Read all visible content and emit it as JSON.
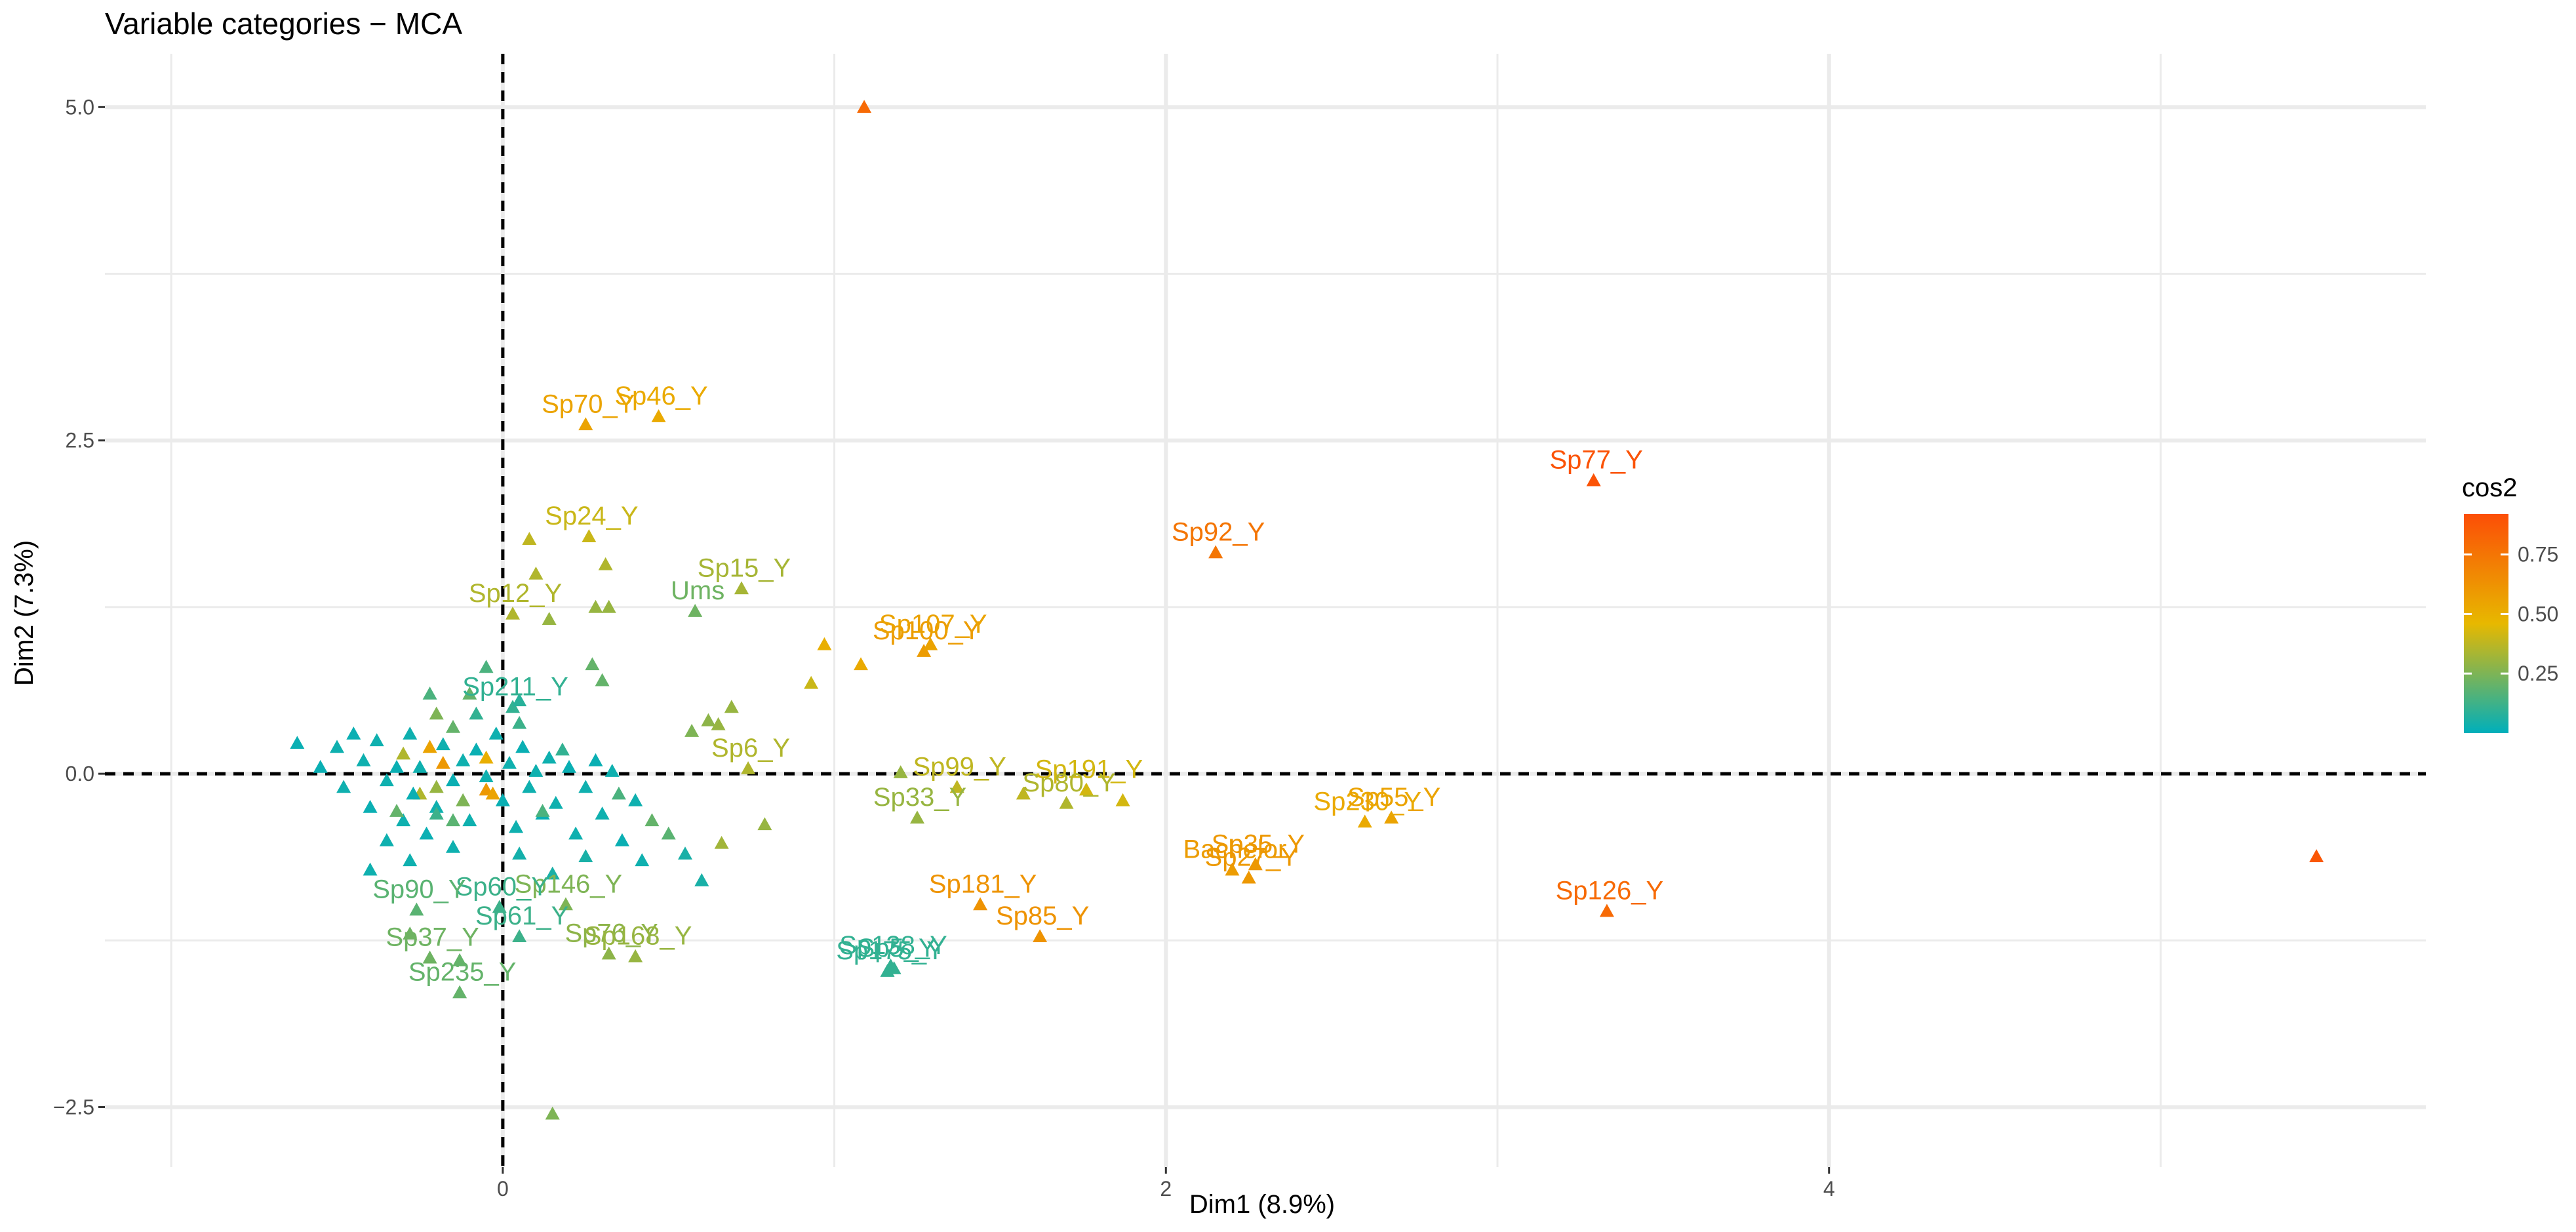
{
  "chart_data": {
    "type": "scatter",
    "title": "Variable categories − MCA",
    "xlabel": "Dim1 (8.9%)",
    "ylabel": "Dim2 (7.3%)",
    "xlim": [
      -1.2,
      5.8
    ],
    "ylim": [
      -2.95,
      5.4
    ],
    "x_ticks": [
      {
        "v": 0,
        "label": "0"
      },
      {
        "v": 2,
        "label": "2"
      },
      {
        "v": 4,
        "label": "4"
      }
    ],
    "y_ticks": [
      {
        "v": -2.5,
        "label": "−2.5"
      },
      {
        "v": 0,
        "label": "0.0"
      },
      {
        "v": 2.5,
        "label": "2.5"
      },
      {
        "v": 5,
        "label": "5.0"
      }
    ],
    "grid": true,
    "reference_lines": {
      "x": 0,
      "y": 0,
      "style": "dashed"
    },
    "marker": "triangle",
    "legend": {
      "title": "cos2",
      "position": "right",
      "range": [
        0,
        0.92
      ],
      "ticks": [
        {
          "v": 0.25,
          "label": "0.25"
        },
        {
          "v": 0.5,
          "label": "0.50"
        },
        {
          "v": 0.75,
          "label": "0.75"
        }
      ],
      "colors": [
        "#00AFBB",
        "#E7B800",
        "#FC4E07"
      ]
    },
    "points": [
      {
        "x": 1.09,
        "y": 5.0,
        "cos2": 0.8
      },
      {
        "x": 5.47,
        "y": -0.62,
        "cos2": 0.88
      },
      {
        "x": 3.29,
        "y": 2.2,
        "cos2": 0.9,
        "label": "Sp77_Y"
      },
      {
        "x": 2.15,
        "y": 1.66,
        "cos2": 0.75,
        "label": "Sp92_Y"
      },
      {
        "x": 3.33,
        "y": -1.03,
        "cos2": 0.8,
        "label": "Sp126_Y"
      },
      {
        "x": 0.25,
        "y": 2.62,
        "cos2": 0.55,
        "label": "Sp70_Y"
      },
      {
        "x": 0.47,
        "y": 2.68,
        "cos2": 0.52,
        "label": "Sp46_Y"
      },
      {
        "x": 0.26,
        "y": 1.78,
        "cos2": 0.4,
        "label": "Sp24_Y"
      },
      {
        "x": 0.72,
        "y": 1.39,
        "cos2": 0.33,
        "label": "Sp15_Y"
      },
      {
        "x": 0.58,
        "y": 1.22,
        "cos2": 0.22,
        "label": "Ums"
      },
      {
        "x": 0.03,
        "y": 1.2,
        "cos2": 0.35,
        "label": "Sp12_Y"
      },
      {
        "x": 1.27,
        "y": 0.92,
        "cos2": 0.58,
        "label": "Sp100_Y"
      },
      {
        "x": 1.29,
        "y": 0.97,
        "cos2": 0.55,
        "label": "Sp107_Y"
      },
      {
        "x": 0.74,
        "y": 0.04,
        "cos2": 0.35,
        "label": "Sp6_Y"
      },
      {
        "x": 1.37,
        "y": -0.1,
        "cos2": 0.38,
        "label": "Sp99_Y"
      },
      {
        "x": 1.76,
        "y": -0.12,
        "cos2": 0.42,
        "label": "Sp191_Y"
      },
      {
        "x": 1.25,
        "y": -0.33,
        "cos2": 0.3,
        "label": "Sp33_Y"
      },
      {
        "x": 1.7,
        "y": -0.22,
        "cos2": 0.35,
        "label": "Sp80_Y"
      },
      {
        "x": 2.6,
        "y": -0.36,
        "cos2": 0.52,
        "label": "Sp230_Y"
      },
      {
        "x": 2.68,
        "y": -0.33,
        "cos2": 0.55,
        "label": "Sp55_Y"
      },
      {
        "x": 2.2,
        "y": -0.72,
        "cos2": 0.58,
        "label": "Bachelor"
      },
      {
        "x": 2.27,
        "y": -0.68,
        "cos2": 0.6,
        "label": "Sp35_Y"
      },
      {
        "x": 2.25,
        "y": -0.78,
        "cos2": 0.6,
        "label": "Sp27_Y"
      },
      {
        "x": 1.44,
        "y": -0.98,
        "cos2": 0.62,
        "label": "Sp181_Y"
      },
      {
        "x": 1.62,
        "y": -1.22,
        "cos2": 0.62,
        "label": "Sp85_Y"
      },
      {
        "x": 0.19,
        "y": -0.98,
        "cos2": 0.25,
        "label": "Sp146_Y"
      },
      {
        "x": -0.01,
        "y": -1.0,
        "cos2": 0.12,
        "label": "Sp60_Y"
      },
      {
        "x": -0.26,
        "y": -1.02,
        "cos2": 0.18,
        "label": "Sp90_Y"
      },
      {
        "x": 0.05,
        "y": -1.22,
        "cos2": 0.12,
        "label": "Sp61_Y"
      },
      {
        "x": -0.22,
        "y": -1.38,
        "cos2": 0.22,
        "label": "Sp37_Y"
      },
      {
        "x": 0.32,
        "y": -1.35,
        "cos2": 0.28,
        "label": "Sp76_Y"
      },
      {
        "x": 0.4,
        "y": -1.37,
        "cos2": 0.3,
        "label": "Sp168_Y"
      },
      {
        "x": -0.13,
        "y": -1.64,
        "cos2": 0.2,
        "label": "Sp235_Y"
      },
      {
        "x": 1.17,
        "y": -1.44,
        "cos2": 0.1,
        "label": "Sp138_Y"
      },
      {
        "x": 1.18,
        "y": -1.46,
        "cos2": 0.1,
        "label": "Sp5_Y"
      },
      {
        "x": 1.16,
        "y": -1.48,
        "cos2": 0.1,
        "label": "Sp175_Y"
      },
      {
        "x": 0.03,
        "y": 0.5,
        "cos2": 0.1,
        "label": "Sp211_Y"
      },
      {
        "x": 0.97,
        "y": 0.97,
        "cos2": 0.5
      },
      {
        "x": 1.08,
        "y": 0.82,
        "cos2": 0.52
      },
      {
        "x": 0.93,
        "y": 0.68,
        "cos2": 0.4
      },
      {
        "x": 0.31,
        "y": 1.57,
        "cos2": 0.35
      },
      {
        "x": 0.08,
        "y": 1.76,
        "cos2": 0.38
      },
      {
        "x": 0.1,
        "y": 1.5,
        "cos2": 0.35
      },
      {
        "x": 0.28,
        "y": 1.25,
        "cos2": 0.3
      },
      {
        "x": 0.32,
        "y": 1.25,
        "cos2": 0.3
      },
      {
        "x": 0.14,
        "y": 1.16,
        "cos2": 0.3
      },
      {
        "x": 0.69,
        "y": 0.5,
        "cos2": 0.3
      },
      {
        "x": 0.62,
        "y": 0.4,
        "cos2": 0.28
      },
      {
        "x": 0.65,
        "y": 0.37,
        "cos2": 0.3
      },
      {
        "x": 0.57,
        "y": 0.32,
        "cos2": 0.25
      },
      {
        "x": 0.27,
        "y": 0.82,
        "cos2": 0.2
      },
      {
        "x": 0.3,
        "y": 0.7,
        "cos2": 0.2
      },
      {
        "x": 0.79,
        "y": -0.38,
        "cos2": 0.3
      },
      {
        "x": 0.66,
        "y": -0.52,
        "cos2": 0.32
      },
      {
        "x": 1.2,
        "y": 0.01,
        "cos2": 0.3
      },
      {
        "x": 1.57,
        "y": -0.15,
        "cos2": 0.38
      },
      {
        "x": 1.87,
        "y": -0.2,
        "cos2": 0.42
      },
      {
        "x": 0.15,
        "y": -2.55,
        "cos2": 0.25
      },
      {
        "x": -0.13,
        "y": -1.4,
        "cos2": 0.2
      },
      {
        "x": -0.28,
        "y": -1.2,
        "cos2": 0.22
      },
      {
        "x": 0.35,
        "y": -0.15,
        "cos2": 0.15
      },
      {
        "x": 0.45,
        "y": -0.35,
        "cos2": 0.2
      },
      {
        "x": 0.5,
        "y": -0.45,
        "cos2": 0.18
      },
      {
        "x": 0.6,
        "y": -0.8,
        "cos2": 0.05
      },
      {
        "x": 0.55,
        "y": -0.6,
        "cos2": 0.05
      },
      {
        "x": -0.05,
        "y": 0.8,
        "cos2": 0.15
      },
      {
        "x": -0.1,
        "y": 0.6,
        "cos2": 0.2
      },
      {
        "x": -0.2,
        "y": 0.45,
        "cos2": 0.25
      },
      {
        "x": -0.15,
        "y": 0.35,
        "cos2": 0.2
      },
      {
        "x": -0.22,
        "y": 0.2,
        "cos2": 0.55
      },
      {
        "x": -0.18,
        "y": 0.08,
        "cos2": 0.6
      },
      {
        "x": -0.05,
        "y": -0.12,
        "cos2": 0.6
      },
      {
        "x": -0.25,
        "y": -0.15,
        "cos2": 0.35
      },
      {
        "x": -0.2,
        "y": -0.1,
        "cos2": 0.3
      },
      {
        "x": -0.12,
        "y": -0.2,
        "cos2": 0.25
      },
      {
        "x": -0.3,
        "y": 0.15,
        "cos2": 0.35
      },
      {
        "x": -0.62,
        "y": 0.23,
        "cos2": 0.02
      },
      {
        "x": -0.55,
        "y": 0.05,
        "cos2": 0.02
      },
      {
        "x": -0.5,
        "y": 0.2,
        "cos2": 0.03
      },
      {
        "x": -0.48,
        "y": -0.1,
        "cos2": 0.03
      },
      {
        "x": -0.45,
        "y": 0.3,
        "cos2": 0.02
      },
      {
        "x": -0.42,
        "y": 0.1,
        "cos2": 0.03
      },
      {
        "x": -0.4,
        "y": -0.25,
        "cos2": 0.02
      },
      {
        "x": -0.38,
        "y": 0.25,
        "cos2": 0.03
      },
      {
        "x": -0.35,
        "y": -0.05,
        "cos2": 0.03
      },
      {
        "x": -0.32,
        "y": 0.05,
        "cos2": 0.02
      },
      {
        "x": -0.3,
        "y": -0.35,
        "cos2": 0.03
      },
      {
        "x": -0.28,
        "y": 0.3,
        "cos2": 0.03
      },
      {
        "x": -0.27,
        "y": -0.15,
        "cos2": 0.02
      },
      {
        "x": -0.25,
        "y": 0.05,
        "cos2": 0.03
      },
      {
        "x": -0.23,
        "y": -0.45,
        "cos2": 0.02
      },
      {
        "x": -0.2,
        "y": -0.25,
        "cos2": 0.03
      },
      {
        "x": -0.18,
        "y": 0.22,
        "cos2": 0.03
      },
      {
        "x": -0.15,
        "y": -0.05,
        "cos2": 0.02
      },
      {
        "x": -0.12,
        "y": 0.1,
        "cos2": 0.03
      },
      {
        "x": -0.1,
        "y": -0.35,
        "cos2": 0.03
      },
      {
        "x": -0.08,
        "y": 0.18,
        "cos2": 0.02
      },
      {
        "x": -0.05,
        "y": -0.02,
        "cos2": 0.03
      },
      {
        "x": -0.02,
        "y": 0.3,
        "cos2": 0.03
      },
      {
        "x": 0.0,
        "y": -0.2,
        "cos2": 0.02
      },
      {
        "x": 0.02,
        "y": 0.08,
        "cos2": 0.03
      },
      {
        "x": 0.04,
        "y": -0.4,
        "cos2": 0.03
      },
      {
        "x": 0.06,
        "y": 0.2,
        "cos2": 0.02
      },
      {
        "x": 0.08,
        "y": -0.1,
        "cos2": 0.03
      },
      {
        "x": 0.1,
        "y": 0.02,
        "cos2": 0.03
      },
      {
        "x": 0.12,
        "y": -0.3,
        "cos2": 0.02
      },
      {
        "x": 0.14,
        "y": 0.12,
        "cos2": 0.03
      },
      {
        "x": 0.16,
        "y": -0.22,
        "cos2": 0.03
      },
      {
        "x": 0.2,
        "y": 0.05,
        "cos2": 0.02
      },
      {
        "x": 0.22,
        "y": -0.45,
        "cos2": 0.03
      },
      {
        "x": 0.25,
        "y": -0.1,
        "cos2": 0.03
      },
      {
        "x": 0.28,
        "y": 0.1,
        "cos2": 0.02
      },
      {
        "x": 0.3,
        "y": -0.3,
        "cos2": 0.03
      },
      {
        "x": 0.33,
        "y": 0.02,
        "cos2": 0.03
      },
      {
        "x": 0.36,
        "y": -0.5,
        "cos2": 0.02
      },
      {
        "x": 0.4,
        "y": -0.2,
        "cos2": 0.03
      },
      {
        "x": 0.42,
        "y": -0.65,
        "cos2": 0.03
      },
      {
        "x": -0.35,
        "y": -0.5,
        "cos2": 0.03
      },
      {
        "x": -0.28,
        "y": -0.65,
        "cos2": 0.03
      },
      {
        "x": -0.4,
        "y": -0.72,
        "cos2": 0.03
      },
      {
        "x": -0.15,
        "y": -0.55,
        "cos2": 0.03
      },
      {
        "x": 0.05,
        "y": -0.6,
        "cos2": 0.04
      },
      {
        "x": 0.15,
        "y": -0.75,
        "cos2": 0.05
      },
      {
        "x": 0.25,
        "y": -0.62,
        "cos2": 0.05
      },
      {
        "x": -0.22,
        "y": 0.6,
        "cos2": 0.15
      },
      {
        "x": 0.05,
        "y": 0.55,
        "cos2": 0.08
      },
      {
        "x": -0.08,
        "y": 0.45,
        "cos2": 0.1
      },
      {
        "x": -0.32,
        "y": -0.28,
        "cos2": 0.2
      },
      {
        "x": -0.15,
        "y": -0.35,
        "cos2": 0.18
      },
      {
        "x": 0.12,
        "y": -0.28,
        "cos2": 0.15
      },
      {
        "x": 0.18,
        "y": 0.18,
        "cos2": 0.1
      },
      {
        "x": -0.05,
        "y": 0.12,
        "cos2": 0.5
      },
      {
        "x": -0.03,
        "y": -0.15,
        "cos2": 0.55
      },
      {
        "x": -0.2,
        "y": -0.3,
        "cos2": 0.12
      },
      {
        "x": 0.05,
        "y": 0.38,
        "cos2": 0.12
      }
    ]
  }
}
